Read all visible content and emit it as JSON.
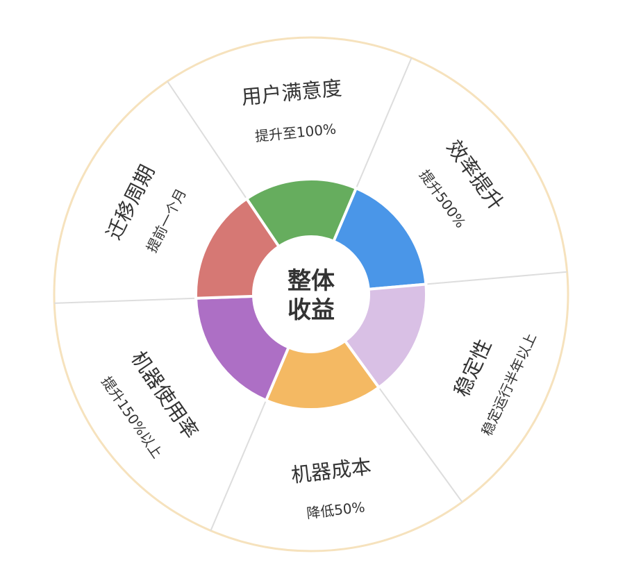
{
  "center": {
    "line1": "整体",
    "line2": "收益"
  },
  "ring_color": "#f6e2bd",
  "divider_color": "#dddddd",
  "segments": [
    {
      "title": "用户满意度",
      "subtitle": "提升至100%",
      "color": "#66ad5e"
    },
    {
      "title": "效率提升",
      "subtitle": "提升500%",
      "color": "#4a96e8"
    },
    {
      "title": "稳定性",
      "subtitle": "稳定运行半年以上",
      "color": "#d9c0e5"
    },
    {
      "title": "机器成本",
      "subtitle": "降低50%",
      "color": "#f4b963"
    },
    {
      "title": "机器使用率",
      "subtitle": "提升150%以上",
      "color": "#ad6fc5"
    },
    {
      "title": "迁移周期",
      "subtitle": "提前一个月",
      "color": "#d67874"
    }
  ]
}
